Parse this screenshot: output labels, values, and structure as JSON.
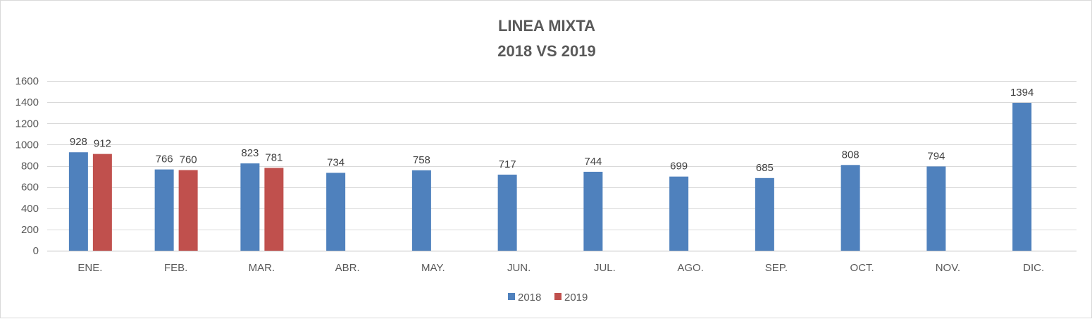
{
  "chart_data": {
    "type": "bar",
    "title": [
      "LINEA MIXTA",
      "2018 VS 2019"
    ],
    "categories": [
      "ENE.",
      "FEB.",
      "MAR.",
      "ABR.",
      "MAY.",
      "JUN.",
      "JUL.",
      "AGO.",
      "SEP.",
      "OCT.",
      "NOV.",
      "DIC."
    ],
    "series": [
      {
        "name": "2018",
        "color": "#4f81bd",
        "values": [
          928,
          766,
          823,
          734,
          758,
          717,
          744,
          699,
          685,
          808,
          794,
          1394
        ]
      },
      {
        "name": "2019",
        "color": "#c0504d",
        "values": [
          912,
          760,
          781,
          null,
          null,
          null,
          null,
          null,
          null,
          null,
          null,
          null
        ]
      }
    ],
    "yticks": [
      0,
      200,
      400,
      600,
      800,
      1000,
      1200,
      1400,
      1600
    ],
    "ylim": [
      0,
      1600
    ],
    "grid": true,
    "legend_position": "bottom",
    "data_labels": true
  }
}
